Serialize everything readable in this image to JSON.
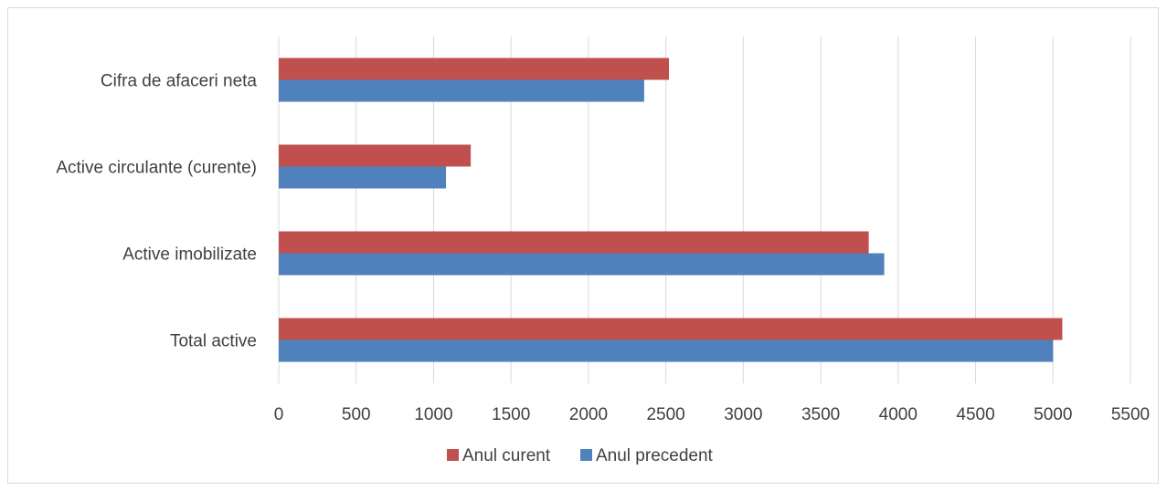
{
  "chart_data": {
    "type": "bar",
    "orientation": "horizontal",
    "categories": [
      "Cifra de afaceri neta",
      "Active circulante (curente)",
      "Active imobilizate",
      "Total active "
    ],
    "series": [
      {
        "name": "Anul curent",
        "color": "#c0504d",
        "values": [
          2520,
          1240,
          3810,
          5060
        ]
      },
      {
        "name": "Anul precedent",
        "color": "#4f81bd",
        "values": [
          2360,
          1080,
          3910,
          5000
        ]
      }
    ],
    "xlim": [
      0,
      5500
    ],
    "xticks": [
      "0",
      "500",
      "1000",
      "1500",
      "2000",
      "2500",
      "3000",
      "3500",
      "4000",
      "4500",
      "5000",
      "5500"
    ],
    "grid": true,
    "legend_position": "bottom"
  }
}
